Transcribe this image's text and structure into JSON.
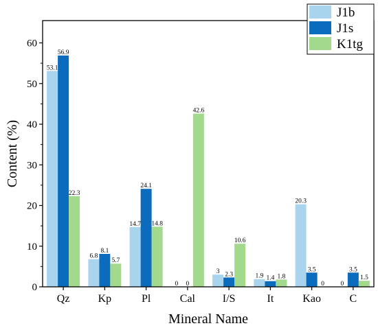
{
  "chart_data": {
    "type": "bar",
    "title": "",
    "xlabel": "Mineral Name",
    "ylabel": "Content (%)",
    "ylim": [
      0,
      65
    ],
    "yticks": [
      0,
      10,
      20,
      30,
      40,
      50,
      60
    ],
    "grid": false,
    "legend_position": "top-right",
    "categories": [
      "Qz",
      "Kp",
      "Pl",
      "Cal",
      "I/S",
      "It",
      "Kao",
      "C"
    ],
    "series": [
      {
        "name": "J1b",
        "color": "#a9d4ee",
        "values": [
          53.1,
          6.8,
          14.7,
          0,
          3,
          1.9,
          20.3,
          0
        ],
        "labels": [
          "53.1",
          "6.8",
          "14.7",
          "0",
          "3",
          "1.9",
          "20.3",
          "0"
        ]
      },
      {
        "name": "J1s",
        "color": "#0b6bbd",
        "values": [
          56.9,
          8.1,
          24.1,
          0,
          2.3,
          1.4,
          3.5,
          3.5
        ],
        "labels": [
          "56.9",
          "8.1",
          "24.1",
          "0",
          "2.3",
          "1.4",
          "3.5",
          "3.5"
        ]
      },
      {
        "name": "K1tg",
        "color": "#a3d98c",
        "values": [
          22.3,
          5.7,
          14.8,
          42.6,
          10.6,
          1.8,
          0,
          1.5
        ],
        "labels": [
          "22.3",
          "5.7",
          "14.8",
          "42.6",
          "10.6",
          "1.8",
          "0",
          "1.5"
        ]
      }
    ]
  }
}
